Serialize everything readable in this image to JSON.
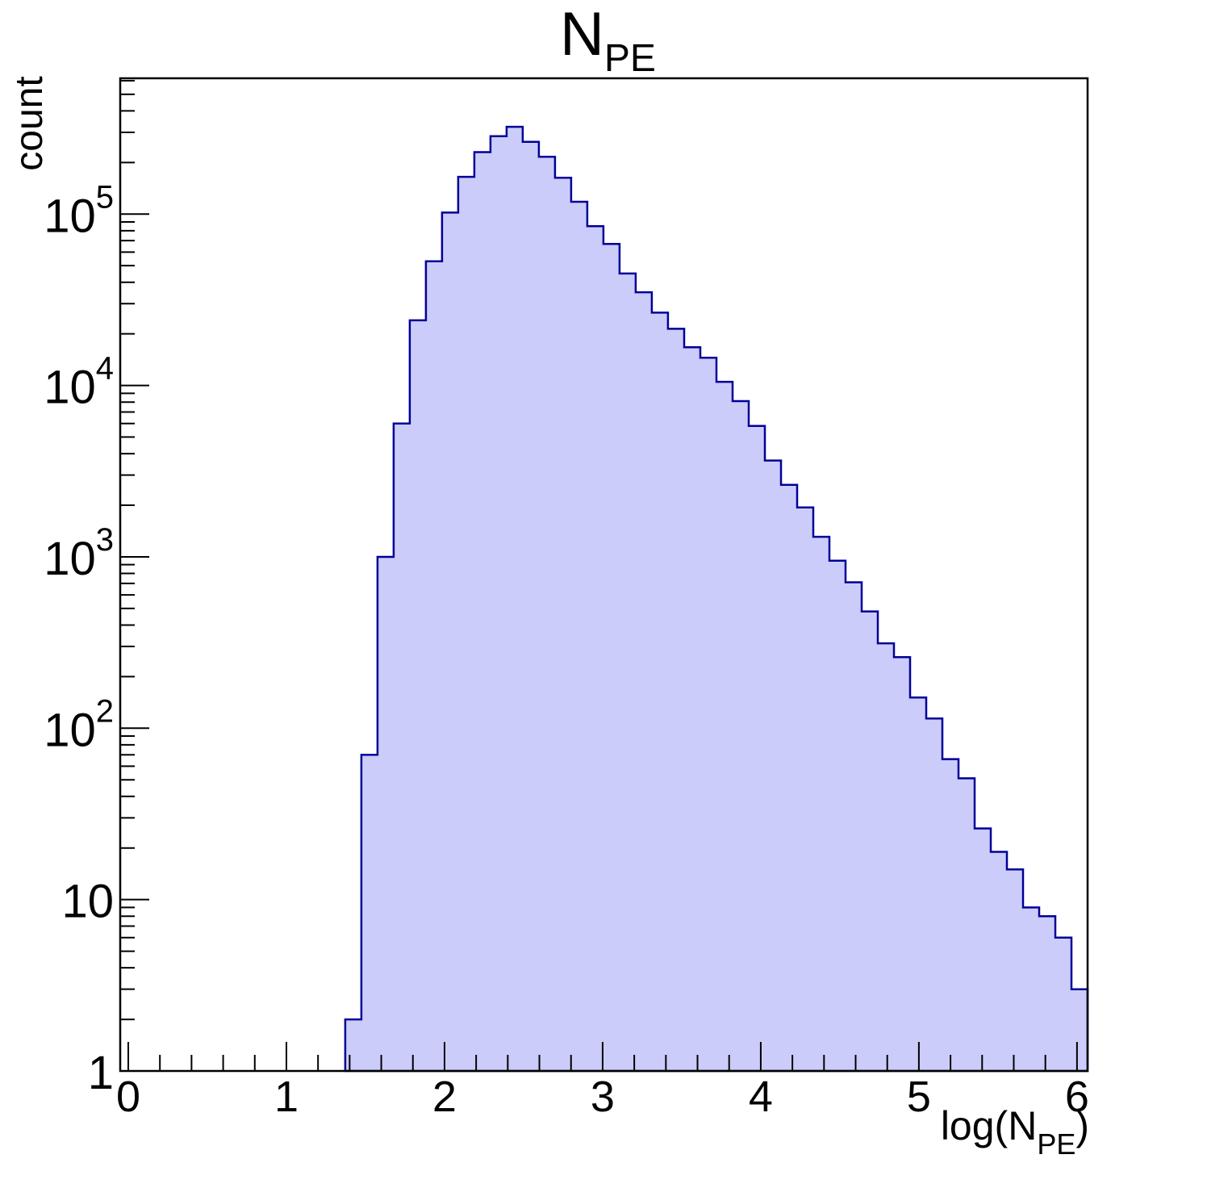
{
  "chart_data": {
    "type": "histogram",
    "title": {
      "main": "N",
      "sub": "PE"
    },
    "xlabel": {
      "pre": "log(N",
      "sub": "PE",
      "post": ")"
    },
    "ylabel": "count",
    "legend": null,
    "grid": false,
    "x_axis": {
      "min": -0.051,
      "max": 6.067,
      "major_ticks": [
        0,
        1,
        2,
        3,
        4,
        5,
        6
      ],
      "minor_tick_step": 0.2
    },
    "y_axis": {
      "scale": "log",
      "min": 1,
      "max": 620000,
      "major_ticks": [
        1,
        10,
        100,
        1000,
        10000,
        100000
      ],
      "tick_labels": [
        {
          "text": "1",
          "sup": ""
        },
        {
          "text": "10",
          "sup": ""
        },
        {
          "text": "10",
          "sup": "2"
        },
        {
          "text": "10",
          "sup": "3"
        },
        {
          "text": "10",
          "sup": "4"
        },
        {
          "text": "10",
          "sup": "5"
        }
      ]
    },
    "bins": {
      "start": 1.372,
      "width": 0.10207,
      "counts": [
        2,
        70,
        1000,
        6000,
        24000,
        53000,
        102000,
        165000,
        230000,
        285000,
        323000,
        264000,
        216000,
        163000,
        118000,
        85000,
        67000,
        45000,
        35000,
        26600,
        21400,
        16700,
        14500,
        10500,
        8100,
        5800,
        3650,
        2630,
        1940,
        1310,
        950,
        710,
        480,
        313,
        260,
        151,
        114,
        66,
        51,
        26,
        19,
        15,
        9,
        8,
        6,
        3
      ]
    },
    "colors": {
      "fill": "#ccccfa",
      "line": "#000099",
      "axis": "#000000",
      "background": "#ffffff"
    }
  }
}
